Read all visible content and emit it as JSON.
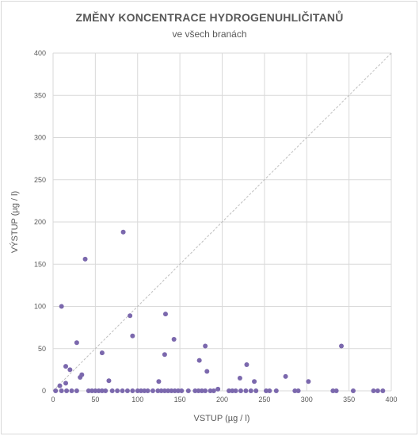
{
  "chart_data": {
    "type": "scatter",
    "title": "ZMĚNY KONCENTRACE HYDROGENUHLIČITANŮ",
    "subtitle": "ve všech branách",
    "xlabel": "VSTUP (µg / l)",
    "ylabel": "VÝSTUP (µg / l)",
    "xlim": [
      0,
      400
    ],
    "ylim": [
      0,
      400
    ],
    "x_ticks": [
      0,
      50,
      100,
      150,
      200,
      250,
      300,
      350,
      400
    ],
    "y_ticks": [
      0,
      50,
      100,
      150,
      200,
      250,
      300,
      350,
      400
    ],
    "grid": true,
    "reference_line": "y = x",
    "colors": {
      "marker": "#7b68ad",
      "grid": "#d9d9d9",
      "reference_line": "#bfbfbf",
      "text": "#595959"
    },
    "points": [
      {
        "x": 83,
        "y": 188
      },
      {
        "x": 38,
        "y": 156
      },
      {
        "x": 10,
        "y": 100
      },
      {
        "x": 133,
        "y": 91
      },
      {
        "x": 91,
        "y": 89
      },
      {
        "x": 94,
        "y": 65
      },
      {
        "x": 143,
        "y": 61
      },
      {
        "x": 28,
        "y": 57
      },
      {
        "x": 180,
        "y": 53
      },
      {
        "x": 341,
        "y": 53
      },
      {
        "x": 58,
        "y": 45
      },
      {
        "x": 132,
        "y": 43
      },
      {
        "x": 173,
        "y": 36
      },
      {
        "x": 229,
        "y": 31
      },
      {
        "x": 15,
        "y": 29
      },
      {
        "x": 20,
        "y": 25
      },
      {
        "x": 182,
        "y": 23
      },
      {
        "x": 34,
        "y": 19
      },
      {
        "x": 32,
        "y": 16
      },
      {
        "x": 275,
        "y": 17
      },
      {
        "x": 221,
        "y": 15
      },
      {
        "x": 66,
        "y": 12
      },
      {
        "x": 125,
        "y": 11
      },
      {
        "x": 238,
        "y": 11
      },
      {
        "x": 302,
        "y": 11
      },
      {
        "x": 15,
        "y": 9
      },
      {
        "x": 8,
        "y": 6
      },
      {
        "x": 195,
        "y": 2
      },
      {
        "x": 3,
        "y": 0
      },
      {
        "x": 10,
        "y": 0
      },
      {
        "x": 16,
        "y": 0
      },
      {
        "x": 22,
        "y": 0
      },
      {
        "x": 28,
        "y": 0
      },
      {
        "x": 42,
        "y": 0
      },
      {
        "x": 46,
        "y": 0
      },
      {
        "x": 50,
        "y": 0
      },
      {
        "x": 54,
        "y": 0
      },
      {
        "x": 58,
        "y": 0
      },
      {
        "x": 62,
        "y": 0
      },
      {
        "x": 70,
        "y": 0
      },
      {
        "x": 76,
        "y": 0
      },
      {
        "x": 82,
        "y": 0
      },
      {
        "x": 88,
        "y": 0
      },
      {
        "x": 94,
        "y": 0
      },
      {
        "x": 100,
        "y": 0
      },
      {
        "x": 104,
        "y": 0
      },
      {
        "x": 108,
        "y": 0
      },
      {
        "x": 112,
        "y": 0
      },
      {
        "x": 118,
        "y": 0
      },
      {
        "x": 124,
        "y": 0
      },
      {
        "x": 128,
        "y": 0
      },
      {
        "x": 132,
        "y": 0
      },
      {
        "x": 136,
        "y": 0
      },
      {
        "x": 140,
        "y": 0
      },
      {
        "x": 144,
        "y": 0
      },
      {
        "x": 148,
        "y": 0
      },
      {
        "x": 152,
        "y": 0
      },
      {
        "x": 160,
        "y": 0
      },
      {
        "x": 168,
        "y": 0
      },
      {
        "x": 172,
        "y": 0
      },
      {
        "x": 176,
        "y": 0
      },
      {
        "x": 180,
        "y": 0
      },
      {
        "x": 186,
        "y": 0
      },
      {
        "x": 190,
        "y": 0
      },
      {
        "x": 208,
        "y": 0
      },
      {
        "x": 212,
        "y": 0
      },
      {
        "x": 216,
        "y": 0
      },
      {
        "x": 222,
        "y": 0
      },
      {
        "x": 228,
        "y": 0
      },
      {
        "x": 234,
        "y": 0
      },
      {
        "x": 240,
        "y": 0
      },
      {
        "x": 252,
        "y": 0
      },
      {
        "x": 256,
        "y": 0
      },
      {
        "x": 264,
        "y": 0
      },
      {
        "x": 286,
        "y": 0
      },
      {
        "x": 290,
        "y": 0
      },
      {
        "x": 331,
        "y": 0
      },
      {
        "x": 335,
        "y": 0
      },
      {
        "x": 355,
        "y": 0
      },
      {
        "x": 379,
        "y": 0
      },
      {
        "x": 384,
        "y": 0
      },
      {
        "x": 390,
        "y": 0
      }
    ]
  }
}
